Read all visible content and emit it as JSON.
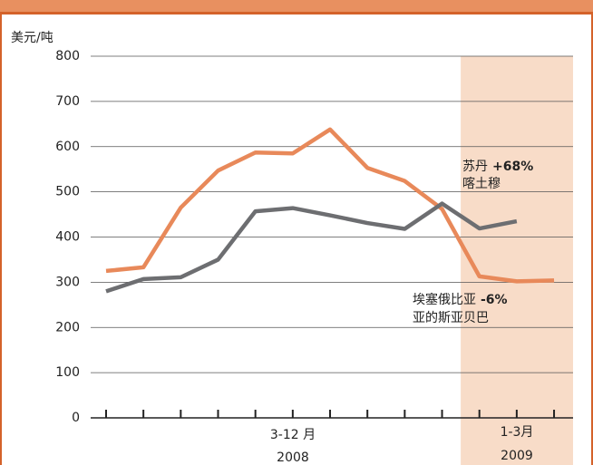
{
  "chart_data": {
    "type": "line",
    "y_label": "美元/吨",
    "categories": [
      null,
      null,
      null,
      null,
      null,
      null,
      null,
      null,
      null,
      null,
      null,
      null,
      null
    ],
    "series": [
      {
        "name": "苏丹",
        "color": "#e8895a",
        "values": [
          325,
          333,
          465,
          547,
          587,
          585,
          638,
          553,
          524,
          462,
          313,
          302,
          304
        ]
      },
      {
        "name": "埃塞俄比亚",
        "color": "#6d6e71",
        "values": [
          280,
          307,
          311,
          350,
          457,
          464,
          448,
          431,
          418,
          474,
          419,
          435,
          null
        ]
      }
    ],
    "ylim": [
      0,
      800
    ],
    "yticks": [
      0,
      100,
      200,
      300,
      400,
      500,
      600,
      700,
      800
    ],
    "grid": true,
    "periods": [
      {
        "months": "3-12 月",
        "year": "2008"
      },
      {
        "months": "1-3月",
        "year": "2009"
      }
    ],
    "annotations": [
      {
        "change": "+68%",
        "city": "喀土穆"
      },
      {
        "change": "-6%",
        "city": "亚的斯亚贝巴"
      }
    ]
  }
}
